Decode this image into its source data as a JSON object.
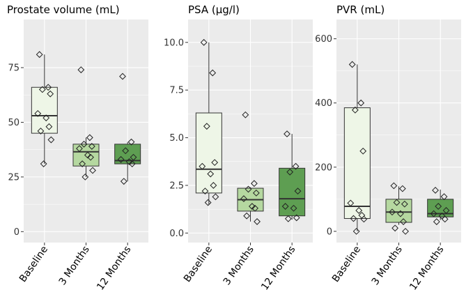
{
  "colors": {
    "panel_bg": "#ebebeb",
    "grid": "#ffffff",
    "baseline_fill": "#eef6e7",
    "three_months_fill": "#b5d8a0",
    "twelve_months_fill": "#5e9e52",
    "outline": "#333333"
  },
  "chart_data": [
    {
      "type": "box",
      "title": "Prostate volume (mL)",
      "categories": [
        "Baseline",
        "3 Months",
        "12 Months"
      ],
      "yticks": [
        0,
        25,
        50,
        75
      ],
      "ytick_labels": [
        "0",
        "25",
        "50",
        "75"
      ],
      "ylim": [
        -5,
        97
      ],
      "grid": true,
      "boxes": [
        {
          "category": "Baseline",
          "whisker_low": 31,
          "q1": 45,
          "median": 53,
          "q3": 66,
          "whisker_high": 81,
          "points": [
            81,
            66,
            65,
            63,
            54,
            52,
            48,
            46,
            42,
            31
          ]
        },
        {
          "category": "3 Months",
          "whisker_low": 25,
          "q1": 30,
          "median": 36.5,
          "q3": 40,
          "whisker_high": 43,
          "points": [
            74,
            43,
            40,
            39,
            38,
            35,
            34,
            31,
            28,
            25
          ]
        },
        {
          "category": "12 Months",
          "whisker_low": 23,
          "q1": 31,
          "median": 32.5,
          "q3": 40,
          "whisker_high": 41,
          "points": [
            71,
            41,
            37,
            34,
            33,
            32,
            31,
            23
          ]
        }
      ]
    },
    {
      "type": "box",
      "title": "PSA (µg/l)",
      "categories": [
        "Baseline",
        "3 Months",
        "12 Months"
      ],
      "yticks": [
        0,
        2.5,
        5,
        7.5,
        10
      ],
      "ytick_labels": [
        "0.0",
        "2.5",
        "5.0",
        "7.5",
        "10.0"
      ],
      "ylim": [
        -0.5,
        11.2
      ],
      "grid": true,
      "boxes": [
        {
          "category": "Baseline",
          "whisker_low": 1.5,
          "q1": 2.1,
          "median": 3.35,
          "q3": 6.3,
          "whisker_high": 10.0,
          "points": [
            10.0,
            8.4,
            5.6,
            3.7,
            3.5,
            3.1,
            2.5,
            2.2,
            1.9,
            1.6
          ]
        },
        {
          "category": "3 Months",
          "whisker_low": 0.6,
          "q1": 1.15,
          "median": 1.75,
          "q3": 2.35,
          "whisker_high": 2.4,
          "points": [
            6.2,
            2.6,
            2.3,
            2.1,
            1.8,
            1.4,
            1.3,
            0.9,
            0.6
          ]
        },
        {
          "category": "12 Months",
          "whisker_low": 0.7,
          "q1": 0.9,
          "median": 1.8,
          "q3": 3.4,
          "whisker_high": 5.2,
          "points": [
            5.2,
            3.5,
            3.2,
            2.2,
            1.4,
            1.3,
            0.8,
            0.75
          ]
        }
      ]
    },
    {
      "type": "box",
      "title": "PVR (mL)",
      "categories": [
        "Baseline",
        "3 Months",
        "12 Months"
      ],
      "yticks": [
        0,
        200,
        400,
        600
      ],
      "ytick_labels": [
        "0",
        "200",
        "400",
        "600"
      ],
      "ylim": [
        -35,
        660
      ],
      "grid": true,
      "boxes": [
        {
          "category": "Baseline",
          "whisker_low": 0,
          "q1": 40,
          "median": 78,
          "q3": 385,
          "whisker_high": 520,
          "points": [
            520,
            400,
            378,
            250,
            88,
            65,
            50,
            40,
            38,
            0
          ]
        },
        {
          "category": "3 Months",
          "whisker_low": 20,
          "q1": 28,
          "median": 60,
          "q3": 100,
          "whisker_high": 140,
          "points": [
            142,
            133,
            90,
            85,
            60,
            55,
            30,
            10,
            0
          ]
        },
        {
          "category": "12 Months",
          "whisker_low": 35,
          "q1": 45,
          "median": 55,
          "q3": 100,
          "whisker_high": 130,
          "points": [
            128,
            108,
            78,
            65,
            55,
            48,
            38,
            30
          ]
        }
      ]
    }
  ]
}
